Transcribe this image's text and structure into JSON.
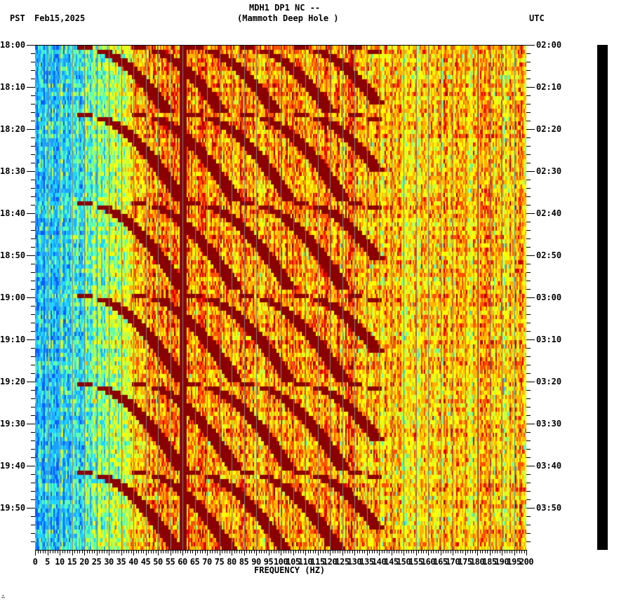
{
  "header": {
    "station_line": "MDH1 DP1 NC --",
    "location_line": "(Mammoth Deep Hole )",
    "left_timezone": "PST",
    "date": "Feb15,2025",
    "right_timezone": "UTC"
  },
  "footer": {
    "corner_mark": "∴"
  },
  "chart_data": {
    "type": "heatmap",
    "title": "MDH1 DP1 NC -- (Mammoth Deep Hole )",
    "subtitle": "Feb15,2025",
    "xlabel": "FREQUENCY (HZ)",
    "ylabel_left": "PST",
    "ylabel_right": "UTC",
    "xlim": [
      0,
      200
    ],
    "x_ticks": [
      0,
      5,
      10,
      15,
      20,
      25,
      30,
      35,
      40,
      45,
      50,
      55,
      60,
      65,
      70,
      75,
      80,
      85,
      90,
      95,
      100,
      105,
      110,
      115,
      120,
      125,
      130,
      135,
      140,
      145,
      150,
      155,
      160,
      165,
      170,
      175,
      180,
      185,
      190,
      195,
      200
    ],
    "y_ticks_left": [
      "18:00",
      "18:10",
      "18:20",
      "18:30",
      "18:40",
      "18:50",
      "19:00",
      "19:10",
      "19:20",
      "19:30",
      "19:40",
      "19:50"
    ],
    "y_ticks_right": [
      "02:00",
      "02:10",
      "02:20",
      "02:30",
      "02:40",
      "02:50",
      "03:00",
      "03:10",
      "03:20",
      "03:30",
      "03:40",
      "03:50"
    ],
    "time_span_minutes": 120,
    "colormap": [
      "#0a5cff",
      "#1ea0ff",
      "#22d4ff",
      "#5cffb0",
      "#c8ff3c",
      "#ffff00",
      "#ffb400",
      "#ff5000",
      "#e00000",
      "#8b0000"
    ],
    "features": {
      "constant_line_hz": 60,
      "constant_line_color": "#8b0000",
      "faint_line_hz": 180,
      "low_freq_band_hz": [
        0,
        25
      ],
      "low_freq_band_color": "#1ea0ff",
      "high_freq_band_hz": [
        130,
        200
      ],
      "chirp_cycle_minutes": 21.5,
      "chirp_cycle_starts_min": [
        0,
        16,
        37,
        59,
        80,
        101
      ],
      "chirp_harmonics": 8,
      "chirp_color": "#8b0000",
      "grid_line_color": "#808080"
    }
  }
}
